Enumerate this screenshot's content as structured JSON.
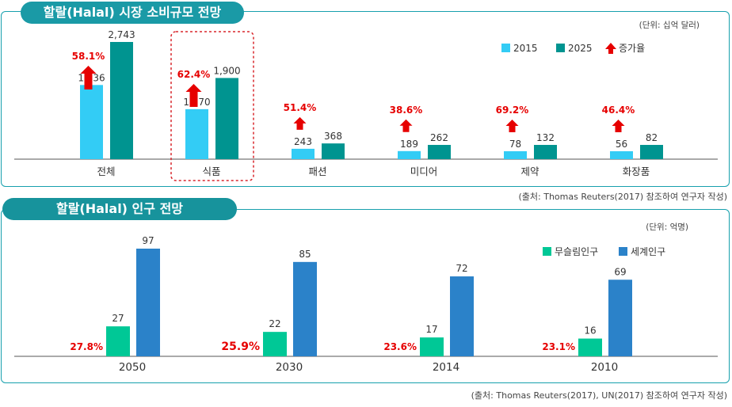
{
  "chart_data": [
    {
      "type": "bar",
      "title": "할랄(Halal) 시장 소비규모 전망",
      "unit": "(단위: 십억 달러)",
      "categories": [
        "전체",
        "식품",
        "패션",
        "미디어",
        "제약",
        "화장품"
      ],
      "series": [
        {
          "name": "2015",
          "values": [
            1736,
            1170,
            243,
            189,
            78,
            56
          ]
        },
        {
          "name": "2025",
          "values": [
            2743,
            1900,
            368,
            262,
            132,
            82
          ]
        }
      ],
      "value_labels": {
        "2015": [
          "1,736",
          "1,170",
          "243",
          "189",
          "78",
          "56"
        ],
        "2025": [
          "2,743",
          "1,900",
          "368",
          "262",
          "132",
          "82"
        ]
      },
      "growth_legend": "증가율",
      "growth_rates": [
        "58.1%",
        "62.4%",
        "51.4%",
        "38.6%",
        "69.2%",
        "46.4%"
      ],
      "highlighted_category": "식품",
      "legend_position": "top-right",
      "source": "(출처: Thomas Reuters(2017) 참조하여 연구자 작성)"
    },
    {
      "type": "bar",
      "title": "할랄(Halal) 인구 전망",
      "unit": "(단위: 억명)",
      "categories": [
        "2050",
        "2030",
        "2014",
        "2010"
      ],
      "series": [
        {
          "name": "무슬림인구",
          "values": [
            27,
            22,
            17,
            16
          ]
        },
        {
          "name": "세계인구",
          "values": [
            97,
            85,
            72,
            69
          ]
        }
      ],
      "shares": [
        "27.8%",
        "25.9%",
        "23.6%",
        "23.1%"
      ],
      "legend_position": "top-right",
      "source": "(출처: Thomas Reuters(2017), UN(2017) 참조하여 연구자 작성)"
    }
  ],
  "colors": {
    "accent": "#1a9aa6",
    "c2015": "#33ccf5",
    "c2025": "#009490",
    "muslim": "#00c896",
    "world": "#2b82c9",
    "growth": "#e60000",
    "highlight_border": "#d8262b"
  }
}
